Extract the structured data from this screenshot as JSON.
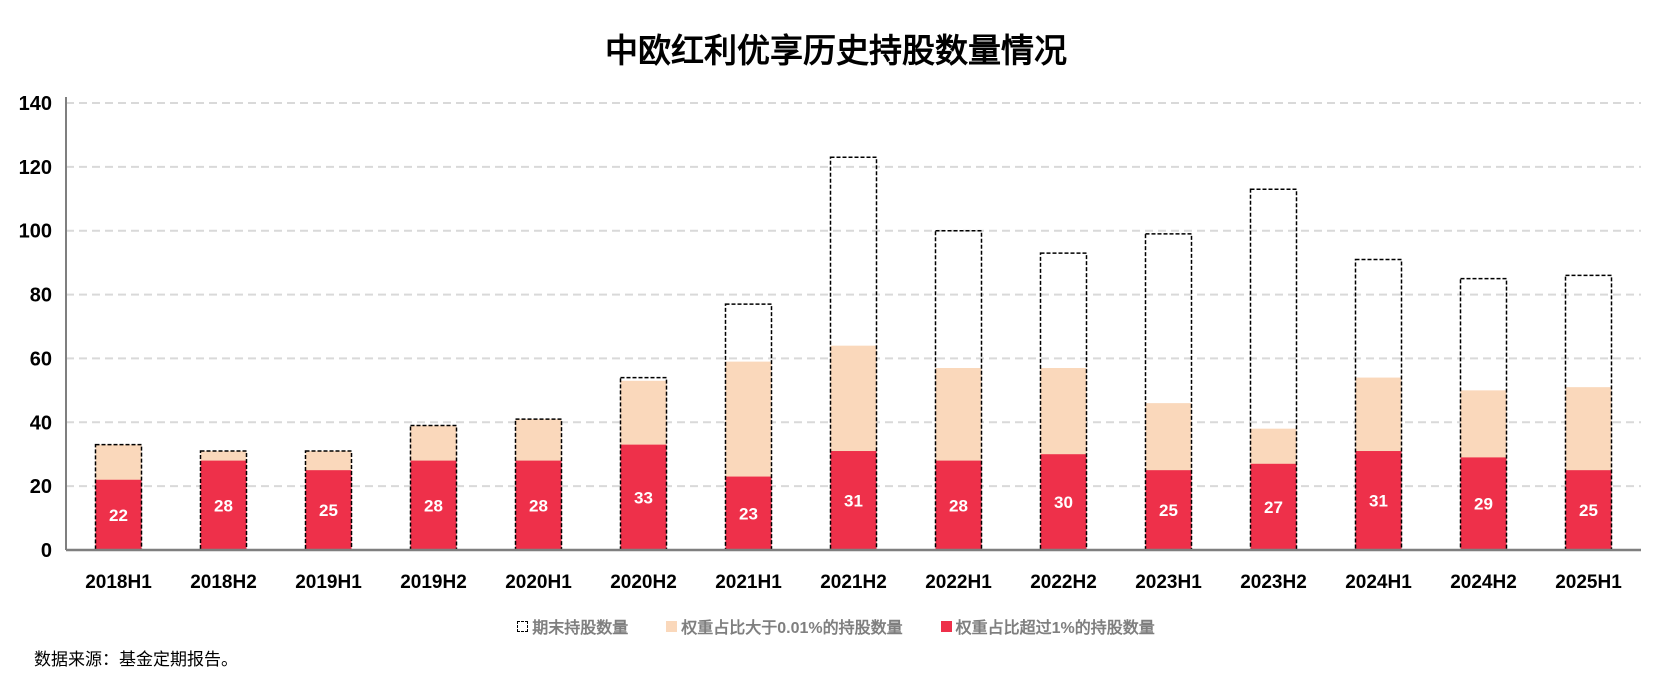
{
  "chart_data": {
    "type": "bar",
    "title": "中欧红利优享历史持股数量情况",
    "categories": [
      "2018H1",
      "2018H2",
      "2019H1",
      "2019H2",
      "2020H1",
      "2020H2",
      "2021H1",
      "2021H2",
      "2022H1",
      "2022H2",
      "2023H1",
      "2023H2",
      "2024H1",
      "2024H2",
      "2025H1"
    ],
    "series": [
      {
        "name": "期末持股数量",
        "style": "dashed-outline",
        "values": [
          33,
          31,
          31,
          39,
          41,
          54,
          77,
          123,
          100,
          93,
          99,
          113,
          91,
          85,
          86
        ]
      },
      {
        "name": "权重占比大于0.01%的持股数量",
        "color": "#fad8bb",
        "values": [
          33,
          31,
          31,
          39,
          41,
          53,
          59,
          64,
          57,
          57,
          46,
          38,
          54,
          50,
          51
        ]
      },
      {
        "name": "权重占比超过1%的持股数量",
        "color": "#ee304a",
        "values": [
          22,
          28,
          25,
          28,
          28,
          33,
          23,
          31,
          28,
          30,
          25,
          27,
          31,
          29,
          25
        ]
      }
    ],
    "yticks": [
      "0",
      "20",
      "40",
      "60",
      "80",
      "100",
      "120",
      "140"
    ],
    "ylim": [
      0,
      140
    ],
    "grid": true,
    "legend_position": "bottom",
    "xlabel": "",
    "ylabel": ""
  },
  "source": "数据来源：基金定期报告。"
}
